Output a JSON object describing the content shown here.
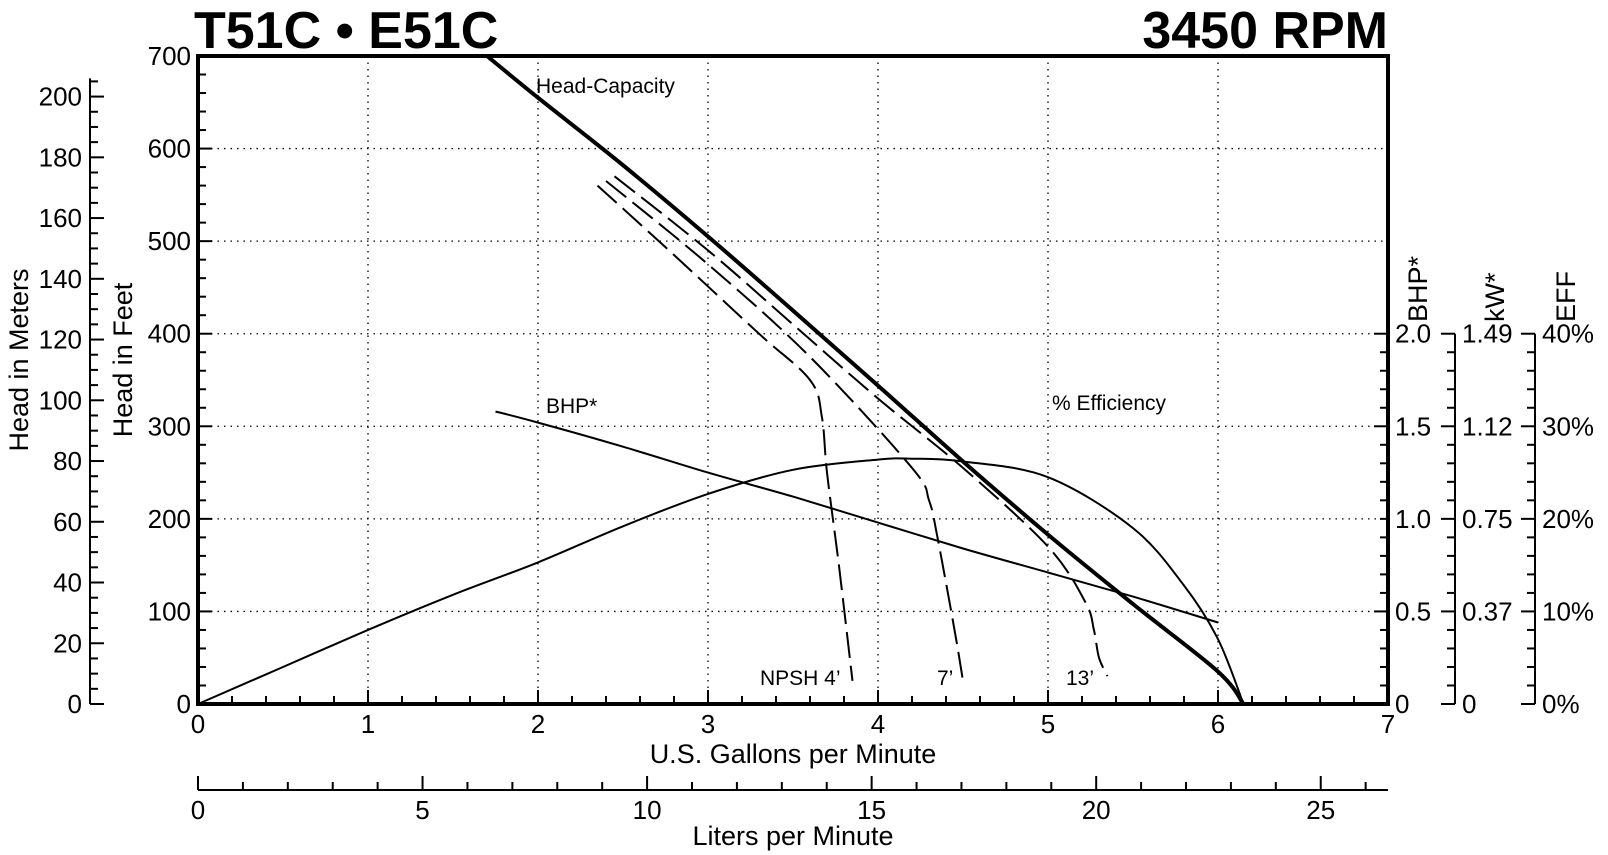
{
  "chart_data": {
    "type": "line",
    "title_left": "T51C • E51C",
    "title_right": "3450 RPM",
    "x_axis": {
      "label": "U.S. Gallons per Minute",
      "range": [
        0,
        7
      ],
      "ticks": [
        0,
        1,
        2,
        3,
        4,
        5,
        6,
        7
      ],
      "tick_labels": [
        "0",
        "1",
        "2",
        "3",
        "4",
        "5",
        "6",
        "7"
      ]
    },
    "x2_axis": {
      "label": "Liters per Minute",
      "ticks": [
        0,
        5,
        10,
        15,
        20,
        25
      ],
      "tick_labels": [
        "0",
        "5",
        "10",
        "15",
        "20",
        "25"
      ]
    },
    "y_axis": {
      "label": "Head in Feet",
      "range": [
        0,
        700
      ],
      "ticks": [
        0,
        100,
        200,
        300,
        400,
        500,
        600,
        700
      ],
      "tick_labels": [
        "0",
        "100",
        "200",
        "300",
        "400",
        "500",
        "600",
        "700"
      ]
    },
    "y_meters_axis": {
      "label": "Head in Meters",
      "ticks": [
        0,
        20,
        40,
        60,
        80,
        100,
        120,
        140,
        160,
        180,
        200
      ],
      "tick_labels": [
        "0",
        "20",
        "40",
        "60",
        "80",
        "100",
        "120",
        "140",
        "160",
        "180",
        "200"
      ]
    },
    "bhp_axis": {
      "label": "BHP*",
      "ticks": [
        0,
        0.5,
        1.0,
        1.5,
        2.0
      ],
      "tick_labels": [
        "0",
        "0.5",
        "1.0",
        "1.5",
        "2.0"
      ]
    },
    "kw_axis": {
      "label": "kW*",
      "ticks": [
        0,
        0.37,
        0.75,
        1.12,
        1.49
      ],
      "tick_labels": [
        "0",
        "0.37",
        "0.75",
        "1.12",
        "1.49"
      ]
    },
    "eff_axis": {
      "label": "EFF",
      "ticks": [
        0,
        10,
        20,
        30,
        40
      ],
      "tick_labels": [
        "0%",
        "10%",
        "20%",
        "30%",
        "40%"
      ]
    },
    "grid": true,
    "series": [
      {
        "name": "Head-Capacity",
        "style": "solid-bold",
        "x": [
          1.7,
          2.0,
          2.5,
          3.0,
          3.5,
          4.0,
          4.5,
          5.0,
          5.5,
          6.0,
          6.15
        ],
        "y": [
          700,
          655,
          582,
          505,
          425,
          344,
          262,
          183,
          108,
          35,
          0
        ]
      },
      {
        "name": "% Efficiency",
        "style": "solid",
        "axis": "eff",
        "x": [
          0,
          0.5,
          1.0,
          1.5,
          2.0,
          2.5,
          3.0,
          3.5,
          4.0,
          4.2,
          4.5,
          5.0,
          5.5,
          5.8,
          6.0,
          6.15
        ],
        "y": [
          0,
          4.0,
          8.0,
          11.8,
          15.3,
          19.2,
          22.7,
          25.3,
          26.4,
          26.5,
          26.2,
          24.5,
          19.0,
          12.8,
          7.0,
          0
        ]
      },
      {
        "name": "BHP*",
        "style": "solid",
        "axis": "bhp",
        "x": [
          1.75,
          2.0,
          2.5,
          3.0,
          3.5,
          4.0,
          4.5,
          5.0,
          5.5,
          6.0
        ],
        "y": [
          1.58,
          1.52,
          1.39,
          1.25,
          1.12,
          0.98,
          0.84,
          0.71,
          0.58,
          0.44
        ]
      },
      {
        "name": "NPSH 4’",
        "style": "dashed",
        "x": [
          2.35,
          2.8,
          3.3,
          3.6,
          3.67,
          3.7,
          3.77,
          3.85
        ],
        "y": [
          560,
          485,
          400,
          350,
          310,
          250,
          150,
          25
        ]
      },
      {
        "name": "7’",
        "style": "dashed",
        "x": [
          2.4,
          3.0,
          3.6,
          4.2,
          4.3,
          4.35,
          4.45,
          4.5
        ],
        "y": [
          565,
          475,
          375,
          255,
          220,
          180,
          80,
          25
        ]
      },
      {
        "name": "13’",
        "style": "dashed",
        "x": [
          2.45,
          3.0,
          3.5,
          4.0,
          4.5,
          5.0,
          5.22,
          5.27,
          5.3,
          5.35
        ],
        "y": [
          570,
          490,
          410,
          330,
          255,
          170,
          110,
          80,
          50,
          30
        ]
      }
    ],
    "annotations": [
      "Head-Capacity",
      "% Efficiency",
      "BHP*",
      "NPSH 4’",
      "7’",
      "13’"
    ]
  }
}
